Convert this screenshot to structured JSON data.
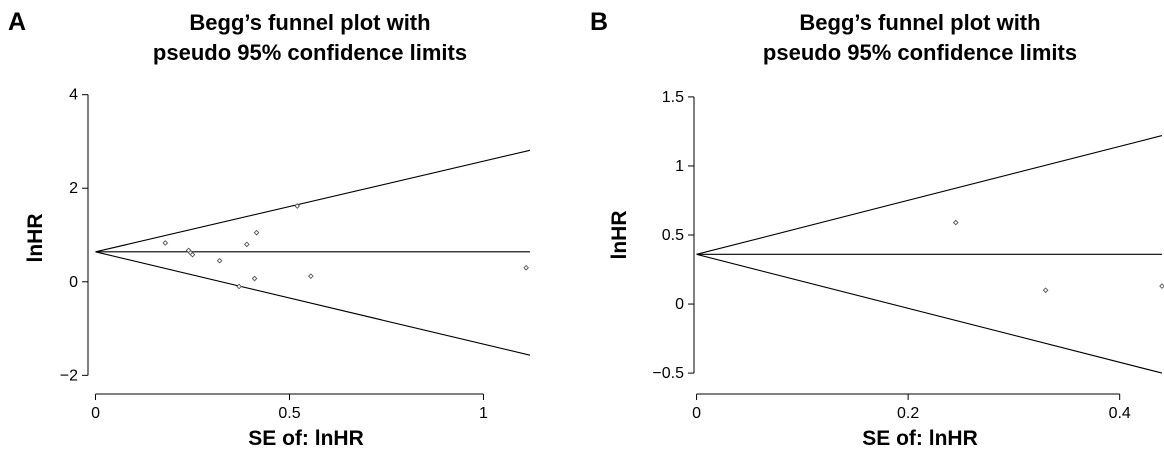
{
  "chart_data": [
    {
      "type": "scatter",
      "panel_label": "A",
      "title": [
        "Begg’s funnel plot with",
        "pseudo 95% confidence limits"
      ],
      "xlabel": "SE of: lnHR",
      "ylabel": "lnHR",
      "xlim": [
        -0.04,
        1.12
      ],
      "ylim": [
        -2.1,
        4.1
      ],
      "xticks": [
        0,
        0.5,
        1
      ],
      "xtick_labels": [
        "0",
        "0.5",
        "1"
      ],
      "yticks": [
        -2,
        0,
        2,
        4
      ],
      "ytick_labels": [
        "−2",
        "0",
        "2",
        "4"
      ],
      "grid": false,
      "pooled_estimate": 0.64,
      "funnel_lines": {
        "center": [
          [
            0,
            0.64
          ],
          [
            1.12,
            0.64
          ]
        ],
        "upper": [
          [
            0,
            0.64
          ],
          [
            1.12,
            2.81
          ]
        ],
        "lower": [
          [
            0,
            0.64
          ],
          [
            1.12,
            -1.57
          ]
        ]
      },
      "points": [
        {
          "x": 0.18,
          "y": 0.83
        },
        {
          "x": 0.24,
          "y": 0.67
        },
        {
          "x": 0.245,
          "y": 0.62
        },
        {
          "x": 0.25,
          "y": 0.58
        },
        {
          "x": 0.32,
          "y": 0.45
        },
        {
          "x": 0.37,
          "y": -0.1
        },
        {
          "x": 0.39,
          "y": 0.8
        },
        {
          "x": 0.41,
          "y": 0.07
        },
        {
          "x": 0.415,
          "y": 1.05
        },
        {
          "x": 0.52,
          "y": 1.62
        },
        {
          "x": 0.555,
          "y": 0.12
        },
        {
          "x": 1.11,
          "y": 0.3
        }
      ]
    },
    {
      "type": "scatter",
      "panel_label": "B",
      "title": [
        "Begg’s funnel plot with",
        "pseudo 95% confidence limits"
      ],
      "xlabel": "SE of: lnHR",
      "ylabel": "lnHR",
      "xlim": [
        -0.01,
        0.44
      ],
      "ylim": [
        -0.55,
        1.55
      ],
      "xticks": [
        0,
        0.2,
        0.4
      ],
      "xtick_labels": [
        "0",
        "0.2",
        "0.4"
      ],
      "yticks": [
        -0.5,
        0,
        0.5,
        1,
        1.5
      ],
      "ytick_labels": [
        "−0.5",
        "0",
        "0.5",
        "1",
        "1.5"
      ],
      "grid": false,
      "pooled_estimate": 0.36,
      "funnel_lines": {
        "center": [
          [
            0,
            0.36
          ],
          [
            0.44,
            0.36
          ]
        ],
        "upper": [
          [
            0,
            0.36
          ],
          [
            0.44,
            1.22
          ]
        ],
        "lower": [
          [
            0,
            0.36
          ],
          [
            0.44,
            -0.5
          ]
        ]
      },
      "points": [
        {
          "x": 0.245,
          "y": 0.59
        },
        {
          "x": 0.33,
          "y": 0.1
        },
        {
          "x": 0.44,
          "y": 0.13
        }
      ]
    }
  ]
}
